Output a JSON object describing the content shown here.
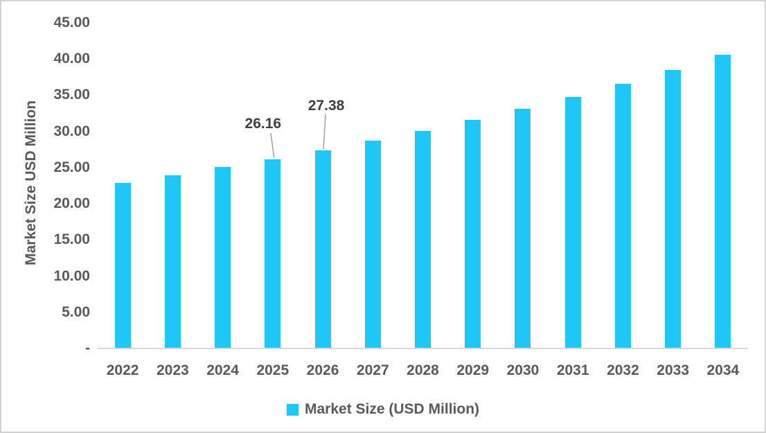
{
  "chart_data": {
    "type": "bar",
    "title": "",
    "xlabel": "",
    "ylabel": "Market Size USD Million",
    "categories": [
      "2022",
      "2023",
      "2024",
      "2025",
      "2026",
      "2027",
      "2028",
      "2029",
      "2030",
      "2031",
      "2032",
      "2033",
      "2034"
    ],
    "series": [
      {
        "name": "Market Size (USD Million)",
        "values": [
          22.9,
          23.95,
          25.05,
          26.16,
          27.38,
          28.7,
          30.1,
          31.55,
          33.15,
          34.75,
          36.55,
          38.5,
          40.6
        ]
      }
    ],
    "ylim": [
      0,
      45
    ],
    "ytick_step": 5,
    "ytick_labels_top_to_bottom": [
      "45.00",
      "40.00",
      "35.00",
      "30.00",
      "25.00",
      "20.00",
      "15.00",
      "10.00",
      "5.00",
      "-"
    ],
    "grid": false,
    "legend_position": "bottom",
    "annotations": [
      {
        "category": "2025",
        "label": "26.16"
      },
      {
        "category": "2026",
        "label": "27.38"
      }
    ]
  },
  "colors": {
    "bar": "#1ec7f5",
    "axis_text": "#595959",
    "annotation_text": "#3f3f3f",
    "axis_line": "#d9d9d9",
    "leader_line": "#a6a6a6",
    "canvas_border": "#d2d2d2"
  },
  "legend": {
    "items": [
      {
        "label": "Market Size (USD Million)",
        "color": "#1ec7f5"
      }
    ]
  }
}
